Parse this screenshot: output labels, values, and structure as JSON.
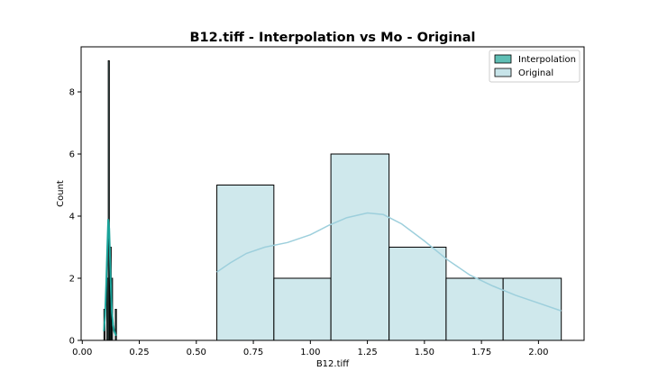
{
  "chart_data": {
    "type": "bar",
    "title": "B12.tiff - Interpolation vs Mo - Original",
    "xlabel": "B12.tiff",
    "ylabel": "Count",
    "xlim": [
      -0.005,
      2.2
    ],
    "ylim": [
      0,
      9.45
    ],
    "xticks": [
      0.0,
      0.25,
      0.5,
      0.75,
      1.0,
      1.25,
      1.5,
      1.75,
      2.0
    ],
    "xtick_labels": [
      "0.00",
      "0.25",
      "0.50",
      "0.75",
      "1.00",
      "1.25",
      "1.50",
      "1.75",
      "2.00"
    ],
    "yticks": [
      0,
      2,
      4,
      6,
      8
    ],
    "ytick_labels": [
      "0",
      "2",
      "4",
      "6",
      "8"
    ],
    "legend_position": "top-right",
    "grid": false,
    "series": [
      {
        "name": "Interpolation",
        "kind": "histogram",
        "fill": "#5fbfb5",
        "edge": "#000000",
        "kde_color": "#1aa39a",
        "bins": [
          {
            "x0": 0.095,
            "x1": 0.099,
            "count": 1
          },
          {
            "x0": 0.108,
            "x1": 0.111,
            "count": 2
          },
          {
            "x0": 0.114,
            "x1": 0.117,
            "count": 9
          },
          {
            "x0": 0.119,
            "x1": 0.122,
            "count": 2
          },
          {
            "x0": 0.122,
            "x1": 0.125,
            "count": 3
          },
          {
            "x0": 0.128,
            "x1": 0.131,
            "count": 2
          },
          {
            "x0": 0.145,
            "x1": 0.148,
            "count": 1
          }
        ],
        "kde": [
          [
            0.095,
            0.3
          ],
          [
            0.1,
            0.8
          ],
          [
            0.105,
            1.8
          ],
          [
            0.11,
            3.0
          ],
          [
            0.114,
            3.9
          ],
          [
            0.118,
            3.6
          ],
          [
            0.122,
            2.6
          ],
          [
            0.126,
            1.6
          ],
          [
            0.13,
            0.9
          ],
          [
            0.135,
            0.5
          ],
          [
            0.14,
            0.3
          ],
          [
            0.148,
            0.15
          ]
        ]
      },
      {
        "name": "Original",
        "kind": "histogram",
        "fill": "#c7e4e9",
        "edge": "#000000",
        "kde_color": "#9dcfdc",
        "bins": [
          {
            "x0": 0.59,
            "x1": 0.84,
            "count": 5
          },
          {
            "x0": 0.84,
            "x1": 1.09,
            "count": 2
          },
          {
            "x0": 1.09,
            "x1": 1.345,
            "count": 6
          },
          {
            "x0": 1.345,
            "x1": 1.595,
            "count": 3
          },
          {
            "x0": 1.595,
            "x1": 1.845,
            "count": 2
          },
          {
            "x0": 1.845,
            "x1": 2.1,
            "count": 2
          }
        ],
        "kde": [
          [
            0.59,
            2.2
          ],
          [
            0.65,
            2.5
          ],
          [
            0.72,
            2.8
          ],
          [
            0.8,
            3.0
          ],
          [
            0.9,
            3.15
          ],
          [
            1.0,
            3.4
          ],
          [
            1.08,
            3.7
          ],
          [
            1.16,
            3.95
          ],
          [
            1.25,
            4.1
          ],
          [
            1.32,
            4.05
          ],
          [
            1.4,
            3.75
          ],
          [
            1.5,
            3.2
          ],
          [
            1.6,
            2.6
          ],
          [
            1.7,
            2.1
          ],
          [
            1.8,
            1.75
          ],
          [
            1.9,
            1.45
          ],
          [
            2.0,
            1.2
          ],
          [
            2.1,
            0.95
          ]
        ]
      }
    ]
  }
}
